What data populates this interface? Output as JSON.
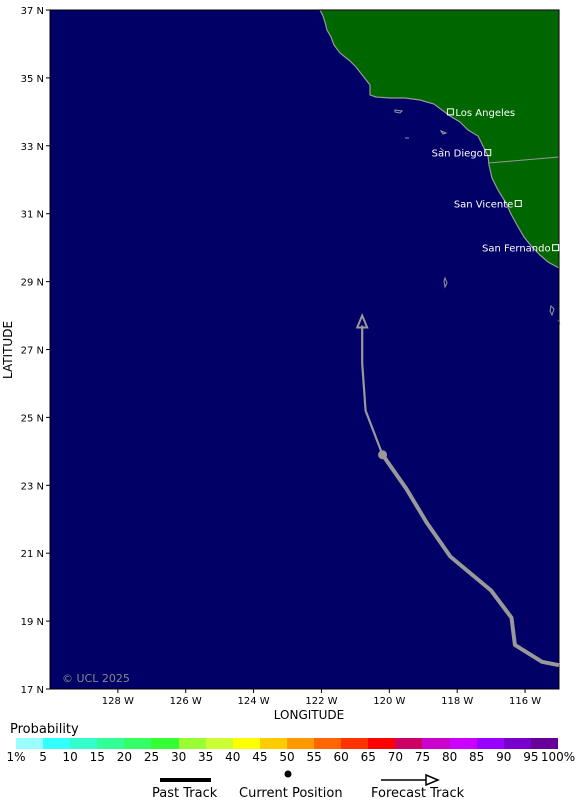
{
  "map": {
    "ocean_color": "#000066",
    "land_color": "#006600",
    "track_color": "#999999",
    "copyright": "© UCL 2025",
    "x_axis_title": "LONGITUDE",
    "y_axis_title": "LATITUDE",
    "lon_ticks": [
      "128 W",
      "126 W",
      "124 W",
      "122 W",
      "120 W",
      "118 W",
      "116 W"
    ],
    "lat_ticks": [
      "37 N",
      "35 N",
      "33 N",
      "31 N",
      "29 N",
      "27 N",
      "25 N",
      "23 N",
      "21 N",
      "19 N",
      "17 N"
    ],
    "extent": {
      "lon_west": -130,
      "lon_east": -115,
      "lat_south": 17,
      "lat_north": 37
    },
    "cities": [
      {
        "name": "Los Angeles",
        "lon": -118.2,
        "lat": 34.0
      },
      {
        "name": "San Diego",
        "lon": -117.1,
        "lat": 32.8
      },
      {
        "name": "San Vicente",
        "lon": -116.2,
        "lat": 31.3
      },
      {
        "name": "San Fernando",
        "lon": -115.1,
        "lat": 30.0
      }
    ]
  },
  "chart_data": {
    "type": "map",
    "past_track": [
      [
        -115.0,
        17.7
      ],
      [
        -115.5,
        17.8
      ],
      [
        -116.3,
        18.3
      ],
      [
        -116.4,
        19.1
      ],
      [
        -117.0,
        19.9
      ],
      [
        -118.2,
        20.9
      ],
      [
        -118.9,
        21.9
      ],
      [
        -119.5,
        22.9
      ],
      [
        -120.2,
        23.9
      ]
    ],
    "current_position": [
      -120.2,
      23.9
    ],
    "forecast_track": [
      [
        -120.2,
        23.9
      ],
      [
        -120.7,
        25.2
      ],
      [
        -120.8,
        26.6
      ],
      [
        -120.8,
        28.0
      ]
    ]
  },
  "colorbar": {
    "title": "Probability",
    "labels": [
      "1%",
      "5",
      "10",
      "15",
      "20",
      "25",
      "30",
      "35",
      "40",
      "45",
      "50",
      "55",
      "60",
      "65",
      "70",
      "75",
      "80",
      "85",
      "90",
      "95",
      "100%"
    ],
    "colors": [
      "#99ffff",
      "#33ffff",
      "#33ffcc",
      "#33ff99",
      "#33ff66",
      "#33ff33",
      "#99ff33",
      "#ccff33",
      "#ffff00",
      "#ffcc00",
      "#ff9900",
      "#ff6600",
      "#ff3300",
      "#ff0000",
      "#cc0066",
      "#cc00cc",
      "#cc00ff",
      "#9900ff",
      "#7700cc",
      "#660099"
    ]
  },
  "legend": {
    "past_label": "Past Track",
    "current_label": "Current Position",
    "forecast_label": "Forecast Track"
  }
}
